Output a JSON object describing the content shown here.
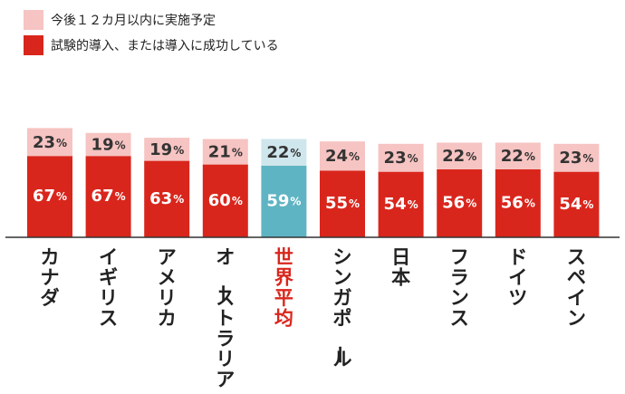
{
  "chart_data": {
    "type": "bar",
    "stacked": true,
    "categories": [
      "カナダ",
      "イギリス",
      "アメリカ",
      "オーストラリア",
      "世界平均",
      "シンガポール",
      "日本",
      "フランス",
      "ドイツ",
      "スペイン"
    ],
    "highlight_category": "世界平均",
    "series": [
      {
        "name": "試験的導入、または導入に成功している",
        "values": [
          67,
          67,
          63,
          60,
          59,
          55,
          54,
          56,
          56,
          54
        ]
      },
      {
        "name": "今後１２カ月以内に実施予定",
        "values": [
          23,
          19,
          19,
          21,
          22,
          24,
          23,
          22,
          22,
          23
        ]
      }
    ],
    "unit": "%",
    "legend_position": "top-left"
  },
  "legend": {
    "planned_label": "今後１２カ月以内に実施予定",
    "adopted_label": "試験的導入、または導入に成功している"
  },
  "colors": {
    "adopted": "#d9261c",
    "planned": "#f6c4c2",
    "avg_adopted": "#5fb4c3",
    "avg_planned": "#cfe6ec",
    "avg_label": "#d9261c",
    "axis": "#333333",
    "label": "#222222",
    "value_on_dark": "#ffffff",
    "value_on_light": "#333333"
  }
}
